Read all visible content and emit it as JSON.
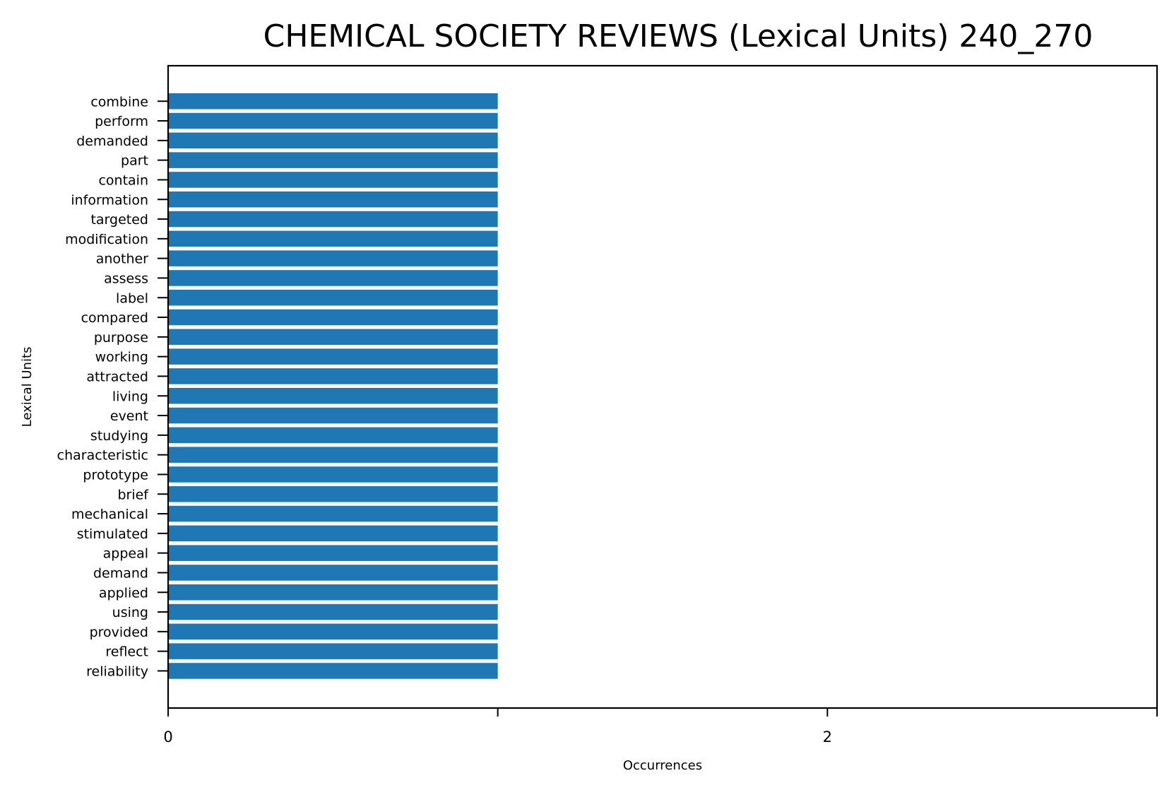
{
  "chart_data": {
    "type": "bar",
    "orientation": "horizontal",
    "title": "CHEMICAL SOCIETY REVIEWS (Lexical Units) 240_270",
    "xlabel": "Occurrences",
    "ylabel": "Lexical Units",
    "categories": [
      "combine",
      "perform",
      "demanded",
      "part",
      "contain",
      "information",
      "targeted",
      "modification",
      "another",
      "assess",
      "label",
      "compared",
      "purpose",
      "working",
      "attracted",
      "living",
      "event",
      "studying",
      "characteristic",
      "prototype",
      "brief",
      "mechanical",
      "stimulated",
      "appeal",
      "demand",
      "applied",
      "using",
      "provided",
      "reflect",
      "reliability"
    ],
    "values": [
      1,
      1,
      1,
      1,
      1,
      1,
      1,
      1,
      1,
      1,
      1,
      1,
      1,
      1,
      1,
      1,
      1,
      1,
      1,
      1,
      1,
      1,
      1,
      1,
      1,
      1,
      1,
      1,
      1,
      1
    ],
    "xlim": [
      0,
      3
    ],
    "xticks": [
      0,
      1,
      2,
      3
    ],
    "xtick_labels": [
      "0",
      "",
      "2",
      ""
    ],
    "bar_color": "#1f77b4",
    "grid": false,
    "legend": "none"
  }
}
